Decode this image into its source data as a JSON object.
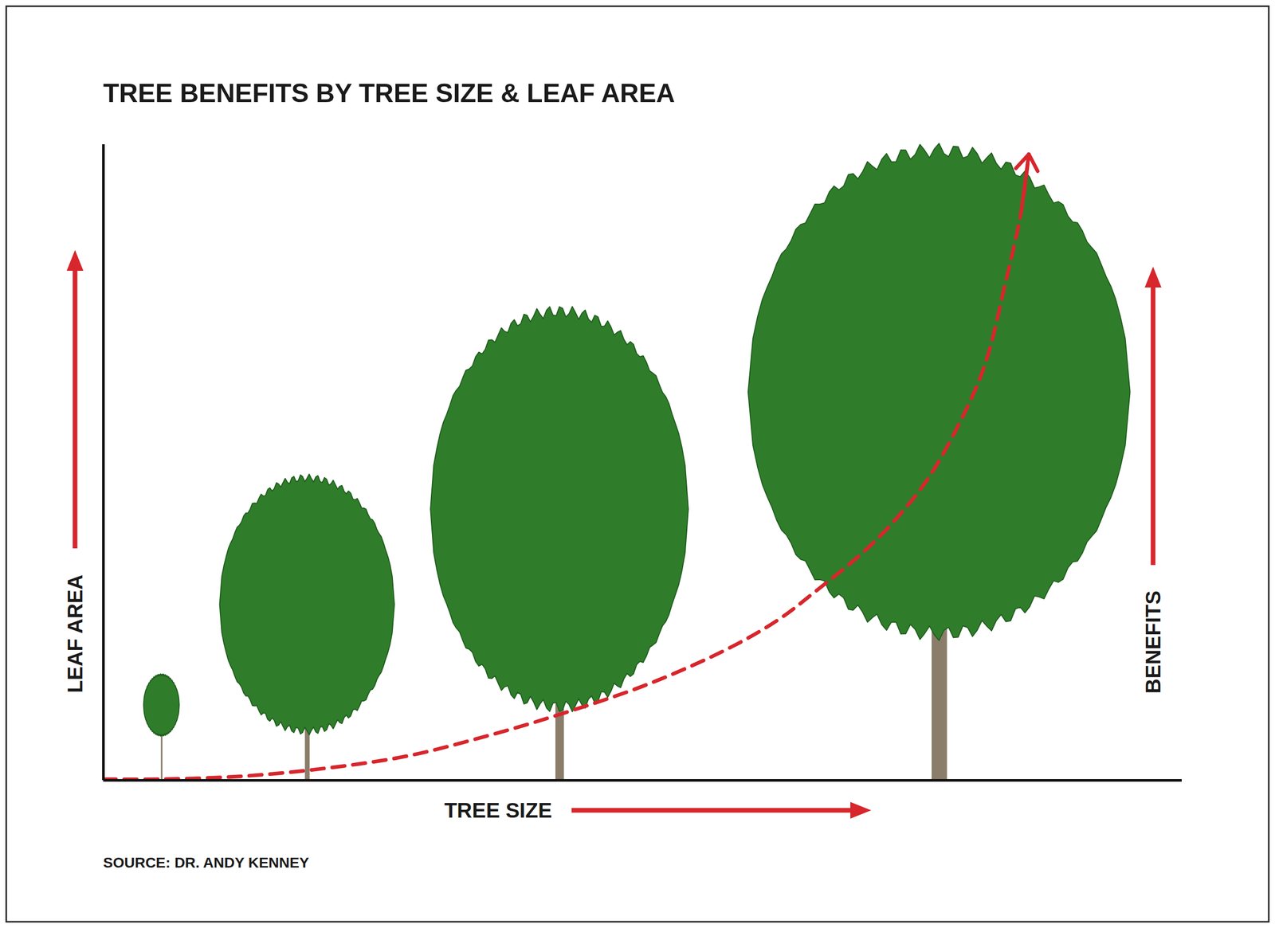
{
  "chart_data": {
    "type": "line",
    "title": "TREE BENEFITS BY TREE SIZE & LEAF AREA",
    "xlabel": "TREE SIZE",
    "ylabel": "LEAF AREA",
    "source": "SOURCE: DR. ANDY KENNEY",
    "xlim": [
      0,
      100
    ],
    "ylim": [
      0,
      105
    ],
    "tick_labels": false,
    "grid": false,
    "x": [
      0,
      5.5,
      13.0,
      20.6,
      28.1,
      35.7,
      43.2,
      50.8,
      58.3,
      62.8,
      65.8,
      70.4,
      73.4,
      76.4,
      79.4,
      81.7,
      83.6,
      85.1,
      85.8
    ],
    "series": [
      {
        "name": "BENEFITS",
        "color": "#d7262c",
        "line_style": "dashed",
        "values": [
          0.2,
          0.2,
          0.7,
          2.0,
          4.0,
          7.4,
          11.4,
          16.1,
          22.1,
          26.8,
          30.9,
          37.6,
          43.0,
          49.7,
          59.1,
          68.5,
          81.9,
          94.0,
          103.4
        ]
      }
    ],
    "trees": [
      {
        "x": 5.4,
        "height": 17.4,
        "crown_base": 7.4,
        "crown_width": 3.3,
        "color": "#2f7d2b"
      },
      {
        "x": 18.9,
        "height": 49.9,
        "crown_base": 8.1,
        "crown_width": 16.2,
        "color": "#2f7d2b"
      },
      {
        "x": 42.3,
        "height": 77.4,
        "crown_base": 12.1,
        "crown_width": 23.9,
        "color": "#2f7d2b"
      },
      {
        "x": 77.5,
        "height": 104.0,
        "crown_base": 24.2,
        "crown_width": 35.4,
        "color": "#2f7d2b"
      }
    ]
  }
}
